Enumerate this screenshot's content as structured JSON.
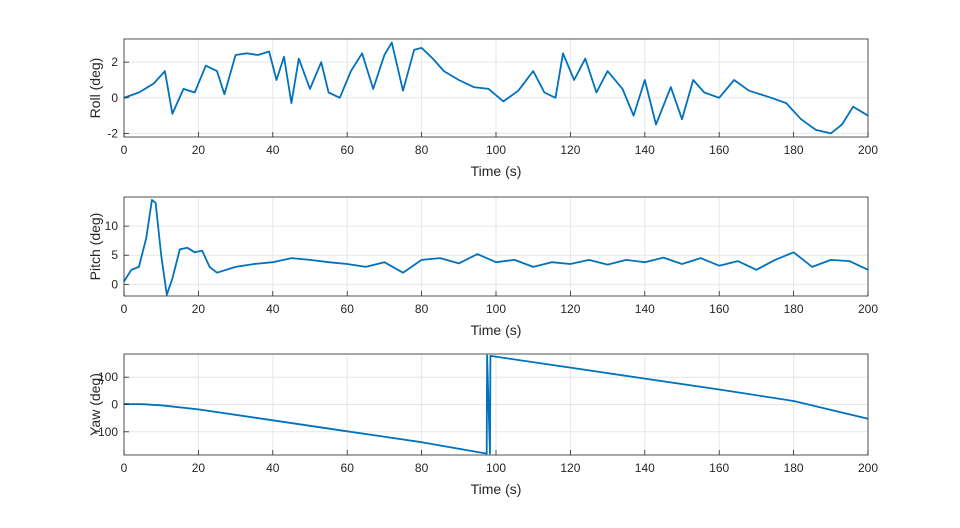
{
  "figure": {
    "background": "#ffffff",
    "line_color": "#0072BD",
    "grid": true,
    "grid_color": "#e6e6e6",
    "axis_color": "#262626"
  },
  "chart_data": [
    {
      "type": "line",
      "xlabel": "Time (s)",
      "ylabel": "Roll (deg)",
      "xlim": [
        0,
        200
      ],
      "ylim": [
        -2.2,
        3.3
      ],
      "xticks": [
        0,
        20,
        40,
        60,
        80,
        100,
        120,
        140,
        160,
        180,
        200
      ],
      "yticks": [
        -2,
        0,
        2
      ],
      "series": [
        {
          "x": [
            0,
            4,
            8,
            11,
            13,
            16,
            19,
            22,
            25,
            27,
            30,
            33,
            36,
            39,
            41,
            43,
            45,
            47,
            50,
            53,
            55,
            58,
            61,
            64,
            67,
            70,
            72,
            75,
            78,
            80,
            83,
            86,
            90,
            94,
            98,
            102,
            106,
            110,
            113,
            116,
            118,
            121,
            124,
            127,
            130,
            134,
            137,
            140,
            143,
            147,
            150,
            153,
            156,
            160,
            164,
            168,
            171,
            174,
            178,
            182,
            186,
            190,
            193,
            196,
            200
          ],
          "y": [
            0,
            0.3,
            0.8,
            1.5,
            -0.9,
            0.5,
            0.3,
            1.8,
            1.5,
            0.2,
            2.4,
            2.5,
            2.4,
            2.6,
            1.0,
            2.3,
            -0.3,
            2.2,
            0.5,
            2.0,
            0.3,
            0.0,
            1.5,
            2.5,
            0.5,
            2.4,
            3.1,
            0.4,
            2.7,
            2.8,
            2.2,
            1.5,
            1.0,
            0.6,
            0.5,
            -0.2,
            0.4,
            1.5,
            0.3,
            0.0,
            2.5,
            1.0,
            2.2,
            0.3,
            1.5,
            0.5,
            -1.0,
            1.0,
            -1.5,
            0.6,
            -1.2,
            1.0,
            0.3,
            0.0,
            1.0,
            0.4,
            0.2,
            0.0,
            -0.3,
            -1.2,
            -1.8,
            -2.0,
            -1.5,
            -0.5,
            -1.0
          ]
        }
      ]
    },
    {
      "type": "line",
      "xlabel": "Time (s)",
      "ylabel": "Pitch (deg)",
      "xlim": [
        0,
        200
      ],
      "ylim": [
        -2,
        15
      ],
      "xticks": [
        0,
        20,
        40,
        60,
        80,
        100,
        120,
        140,
        160,
        180,
        200
      ],
      "yticks": [
        0,
        5,
        10
      ],
      "series": [
        {
          "x": [
            0,
            2,
            4,
            6,
            7.5,
            8.5,
            10,
            11.5,
            13,
            15,
            17,
            19,
            21,
            23,
            25,
            30,
            35,
            40,
            45,
            50,
            55,
            60,
            65,
            70,
            75,
            80,
            85,
            90,
            95,
            100,
            105,
            110,
            115,
            120,
            125,
            130,
            135,
            140,
            145,
            150,
            155,
            160,
            165,
            170,
            175,
            180,
            185,
            190,
            195,
            200
          ],
          "y": [
            0.5,
            2.5,
            3.0,
            8.0,
            14.5,
            14.0,
            5.0,
            -1.8,
            1.0,
            6.0,
            6.3,
            5.5,
            5.8,
            3.0,
            2.0,
            3.0,
            3.5,
            3.8,
            4.5,
            4.2,
            3.8,
            3.5,
            3.0,
            3.8,
            2.0,
            4.2,
            4.5,
            3.6,
            5.2,
            3.8,
            4.2,
            3.0,
            3.8,
            3.5,
            4.2,
            3.4,
            4.2,
            3.8,
            4.6,
            3.5,
            4.5,
            3.2,
            4.0,
            2.5,
            4.2,
            5.5,
            3.0,
            4.2,
            4.0,
            2.5
          ]
        }
      ]
    },
    {
      "type": "line",
      "xlabel": "Time (s)",
      "ylabel": "Yaw (deg)",
      "xlim": [
        0,
        200
      ],
      "ylim": [
        -185,
        185
      ],
      "xticks": [
        0,
        20,
        40,
        60,
        80,
        100,
        120,
        140,
        160,
        180,
        200
      ],
      "yticks": [
        -100,
        0,
        100
      ],
      "series": [
        {
          "x": [
            0,
            5,
            10,
            20,
            40,
            60,
            80,
            97.5,
            97.6,
            98.4,
            98.5,
            120,
            140,
            160,
            180,
            200
          ],
          "y": [
            2,
            1,
            -3,
            -18,
            -58,
            -98,
            -138,
            -180,
            180,
            -180,
            178,
            135,
            95,
            55,
            13,
            -52
          ]
        }
      ]
    }
  ]
}
